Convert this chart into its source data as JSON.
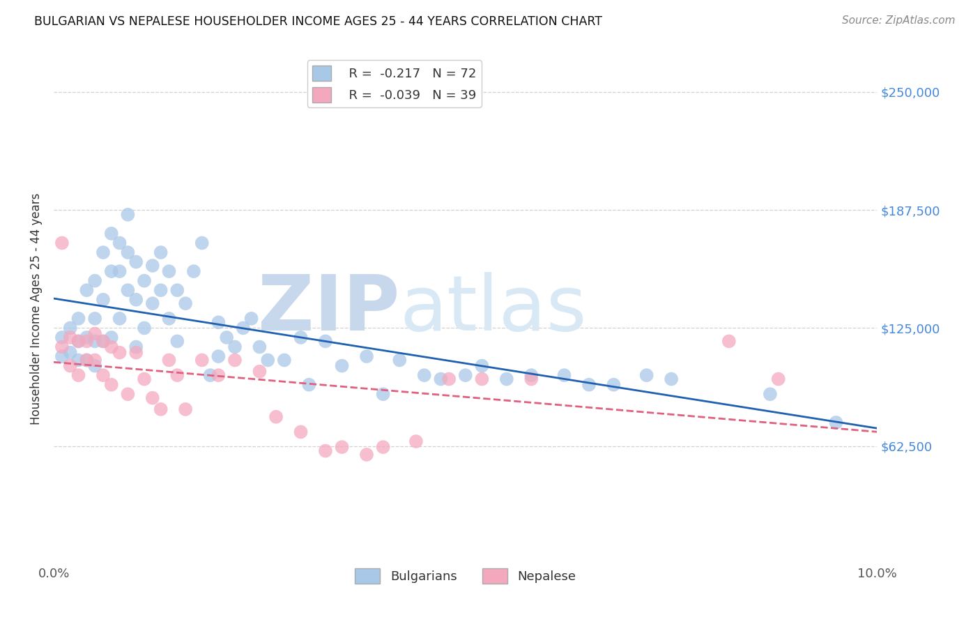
{
  "title": "BULGARIAN VS NEPALESE HOUSEHOLDER INCOME AGES 25 - 44 YEARS CORRELATION CHART",
  "source": "Source: ZipAtlas.com",
  "ylabel": "Householder Income Ages 25 - 44 years",
  "xlim": [
    0.0,
    0.1
  ],
  "ylim": [
    0,
    270000
  ],
  "yticks": [
    62500,
    125000,
    187500,
    250000
  ],
  "ytick_labels": [
    "$62,500",
    "$125,000",
    "$187,500",
    "$250,000"
  ],
  "xticks": [
    0.0,
    0.1
  ],
  "xtick_labels": [
    "0.0%",
    "10.0%"
  ],
  "blue_R": "-0.217",
  "blue_N": "72",
  "pink_R": "-0.039",
  "pink_N": "39",
  "blue_color": "#a8c8e8",
  "pink_color": "#f4a8be",
  "blue_line_color": "#2060b0",
  "pink_line_color": "#e06080",
  "watermark_zip": "ZIP",
  "watermark_atlas": "atlas",
  "watermark_color": "#c8d8ec",
  "blue_scatter_x": [
    0.001,
    0.001,
    0.002,
    0.002,
    0.003,
    0.003,
    0.003,
    0.004,
    0.004,
    0.004,
    0.005,
    0.005,
    0.005,
    0.005,
    0.006,
    0.006,
    0.006,
    0.007,
    0.007,
    0.007,
    0.008,
    0.008,
    0.008,
    0.009,
    0.009,
    0.009,
    0.01,
    0.01,
    0.01,
    0.011,
    0.011,
    0.012,
    0.012,
    0.013,
    0.013,
    0.014,
    0.014,
    0.015,
    0.015,
    0.016,
    0.017,
    0.018,
    0.019,
    0.02,
    0.02,
    0.021,
    0.022,
    0.023,
    0.024,
    0.025,
    0.026,
    0.028,
    0.03,
    0.031,
    0.033,
    0.035,
    0.038,
    0.04,
    0.042,
    0.045,
    0.047,
    0.05,
    0.052,
    0.055,
    0.058,
    0.062,
    0.065,
    0.068,
    0.072,
    0.075,
    0.087,
    0.095
  ],
  "blue_scatter_y": [
    120000,
    110000,
    125000,
    112000,
    130000,
    118000,
    108000,
    145000,
    120000,
    108000,
    150000,
    130000,
    118000,
    105000,
    165000,
    140000,
    118000,
    175000,
    155000,
    120000,
    170000,
    155000,
    130000,
    185000,
    165000,
    145000,
    160000,
    140000,
    115000,
    150000,
    125000,
    158000,
    138000,
    165000,
    145000,
    155000,
    130000,
    145000,
    118000,
    138000,
    155000,
    170000,
    100000,
    128000,
    110000,
    120000,
    115000,
    125000,
    130000,
    115000,
    108000,
    108000,
    120000,
    95000,
    118000,
    105000,
    110000,
    90000,
    108000,
    100000,
    98000,
    100000,
    105000,
    98000,
    100000,
    100000,
    95000,
    95000,
    100000,
    98000,
    90000,
    75000
  ],
  "pink_scatter_x": [
    0.001,
    0.001,
    0.002,
    0.002,
    0.003,
    0.003,
    0.004,
    0.004,
    0.005,
    0.005,
    0.006,
    0.006,
    0.007,
    0.007,
    0.008,
    0.009,
    0.01,
    0.011,
    0.012,
    0.013,
    0.014,
    0.015,
    0.016,
    0.018,
    0.02,
    0.022,
    0.025,
    0.027,
    0.03,
    0.033,
    0.035,
    0.038,
    0.04,
    0.044,
    0.048,
    0.052,
    0.058,
    0.082,
    0.088
  ],
  "pink_scatter_y": [
    170000,
    115000,
    120000,
    105000,
    118000,
    100000,
    118000,
    108000,
    122000,
    108000,
    118000,
    100000,
    115000,
    95000,
    112000,
    90000,
    112000,
    98000,
    88000,
    82000,
    108000,
    100000,
    82000,
    108000,
    100000,
    108000,
    102000,
    78000,
    70000,
    60000,
    62000,
    58000,
    62000,
    65000,
    98000,
    98000,
    98000,
    118000,
    98000
  ]
}
